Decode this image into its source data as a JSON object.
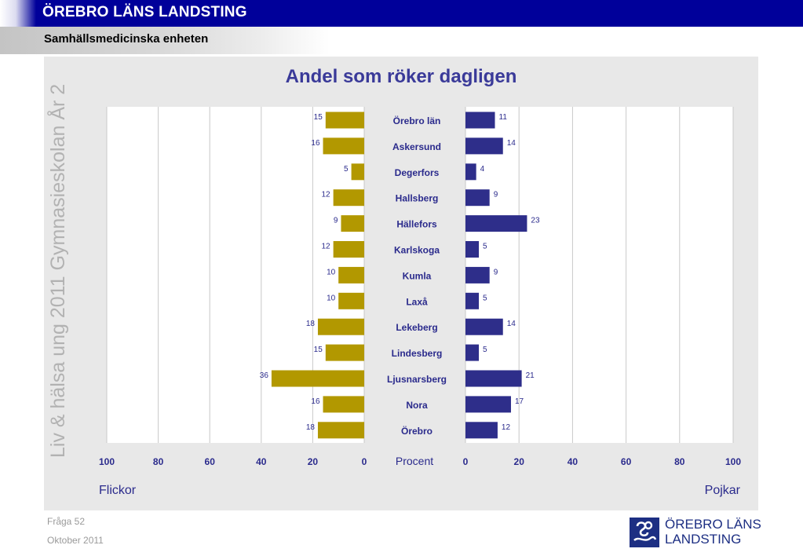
{
  "header": {
    "org_title": "ÖREBRO LÄNS LANDSTING",
    "unit_title": "Samhällsmedicinska enheten"
  },
  "side_caption": "Liv & hälsa ung 2011 Gymnasieskolan År 2",
  "footer": {
    "question": "Fråga 52",
    "date": "Oktober 2011"
  },
  "logo": {
    "line1": "ÖREBRO LÄNS",
    "line2": "LANDSTING"
  },
  "colors": {
    "header_bar": "#00009a",
    "girls_bar": "#b29800",
    "boys_bar": "#2e2e8a",
    "title_text": "#3a3a99",
    "label_text": "#2a2a8c",
    "panel_bg": "#e8e8e8",
    "logo_color": "#1d2f83"
  },
  "chart_data": {
    "type": "bar",
    "orientation": "horizontal-butterfly",
    "title": "Andel som röker dagligen",
    "center_axis_label": "Procent",
    "left_label": "Flickor",
    "right_label": "Pojkar",
    "xlim": [
      0,
      100
    ],
    "ticks": [
      "0",
      "20",
      "40",
      "60",
      "80",
      "100"
    ],
    "grid": true,
    "categories": [
      "Örebro län",
      "Askersund",
      "Degerfors",
      "Hallsberg",
      "Hällefors",
      "Karlskoga",
      "Kumla",
      "Laxå",
      "Lekeberg",
      "Lindesberg",
      "Ljusnarsberg",
      "Nora",
      "Örebro"
    ],
    "series": [
      {
        "name": "Flickor",
        "side": "left",
        "values": [
          15,
          16,
          5,
          12,
          9,
          12,
          10,
          10,
          18,
          15,
          36,
          16,
          18
        ]
      },
      {
        "name": "Pojkar",
        "side": "right",
        "values": [
          11,
          14,
          4,
          9,
          23,
          5,
          9,
          5,
          14,
          5,
          21,
          17,
          12
        ]
      }
    ]
  }
}
